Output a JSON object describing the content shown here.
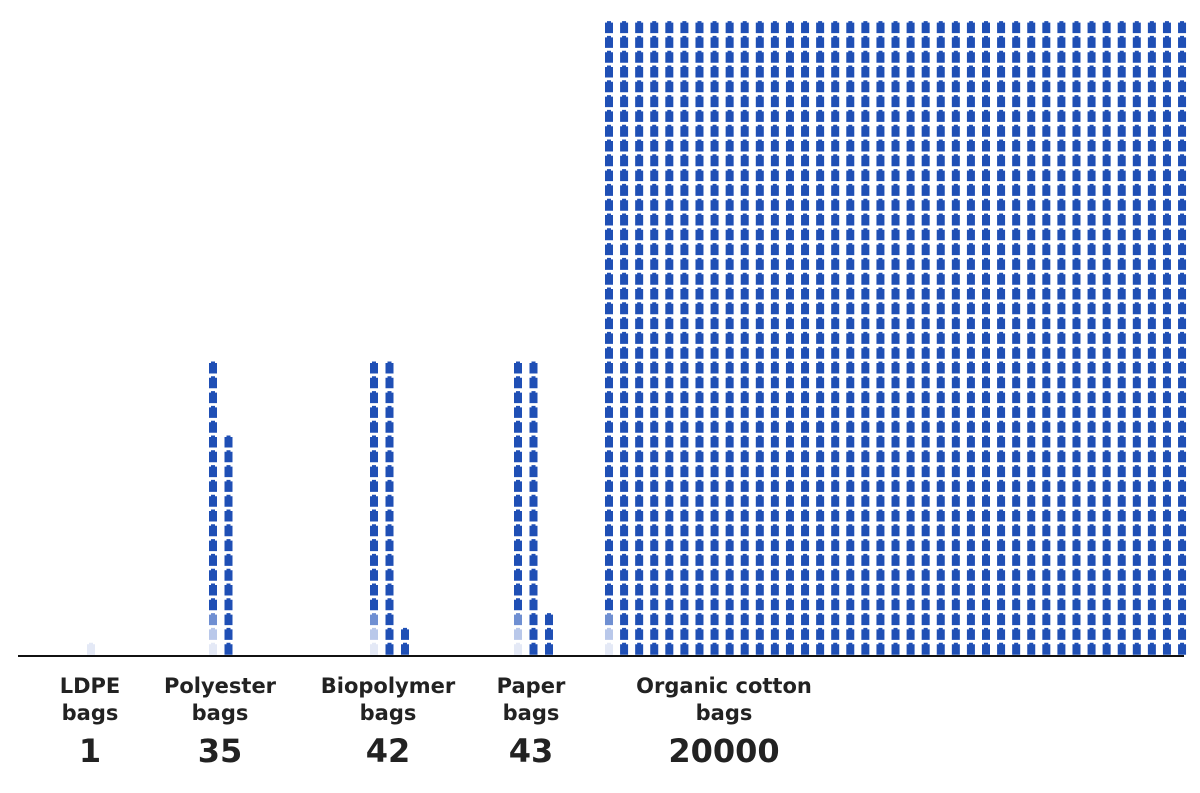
{
  "chart_data": {
    "type": "pictogram",
    "categories": [
      [
        "LDPE",
        "bags"
      ],
      [
        "Polyester",
        "bags"
      ],
      [
        "Biopolymer",
        "bags"
      ],
      [
        "Paper",
        "bags"
      ],
      [
        "Organic cotton",
        "bags"
      ]
    ],
    "values": [
      1,
      35,
      42,
      43,
      20000
    ],
    "color": "#1f4fb5"
  }
}
